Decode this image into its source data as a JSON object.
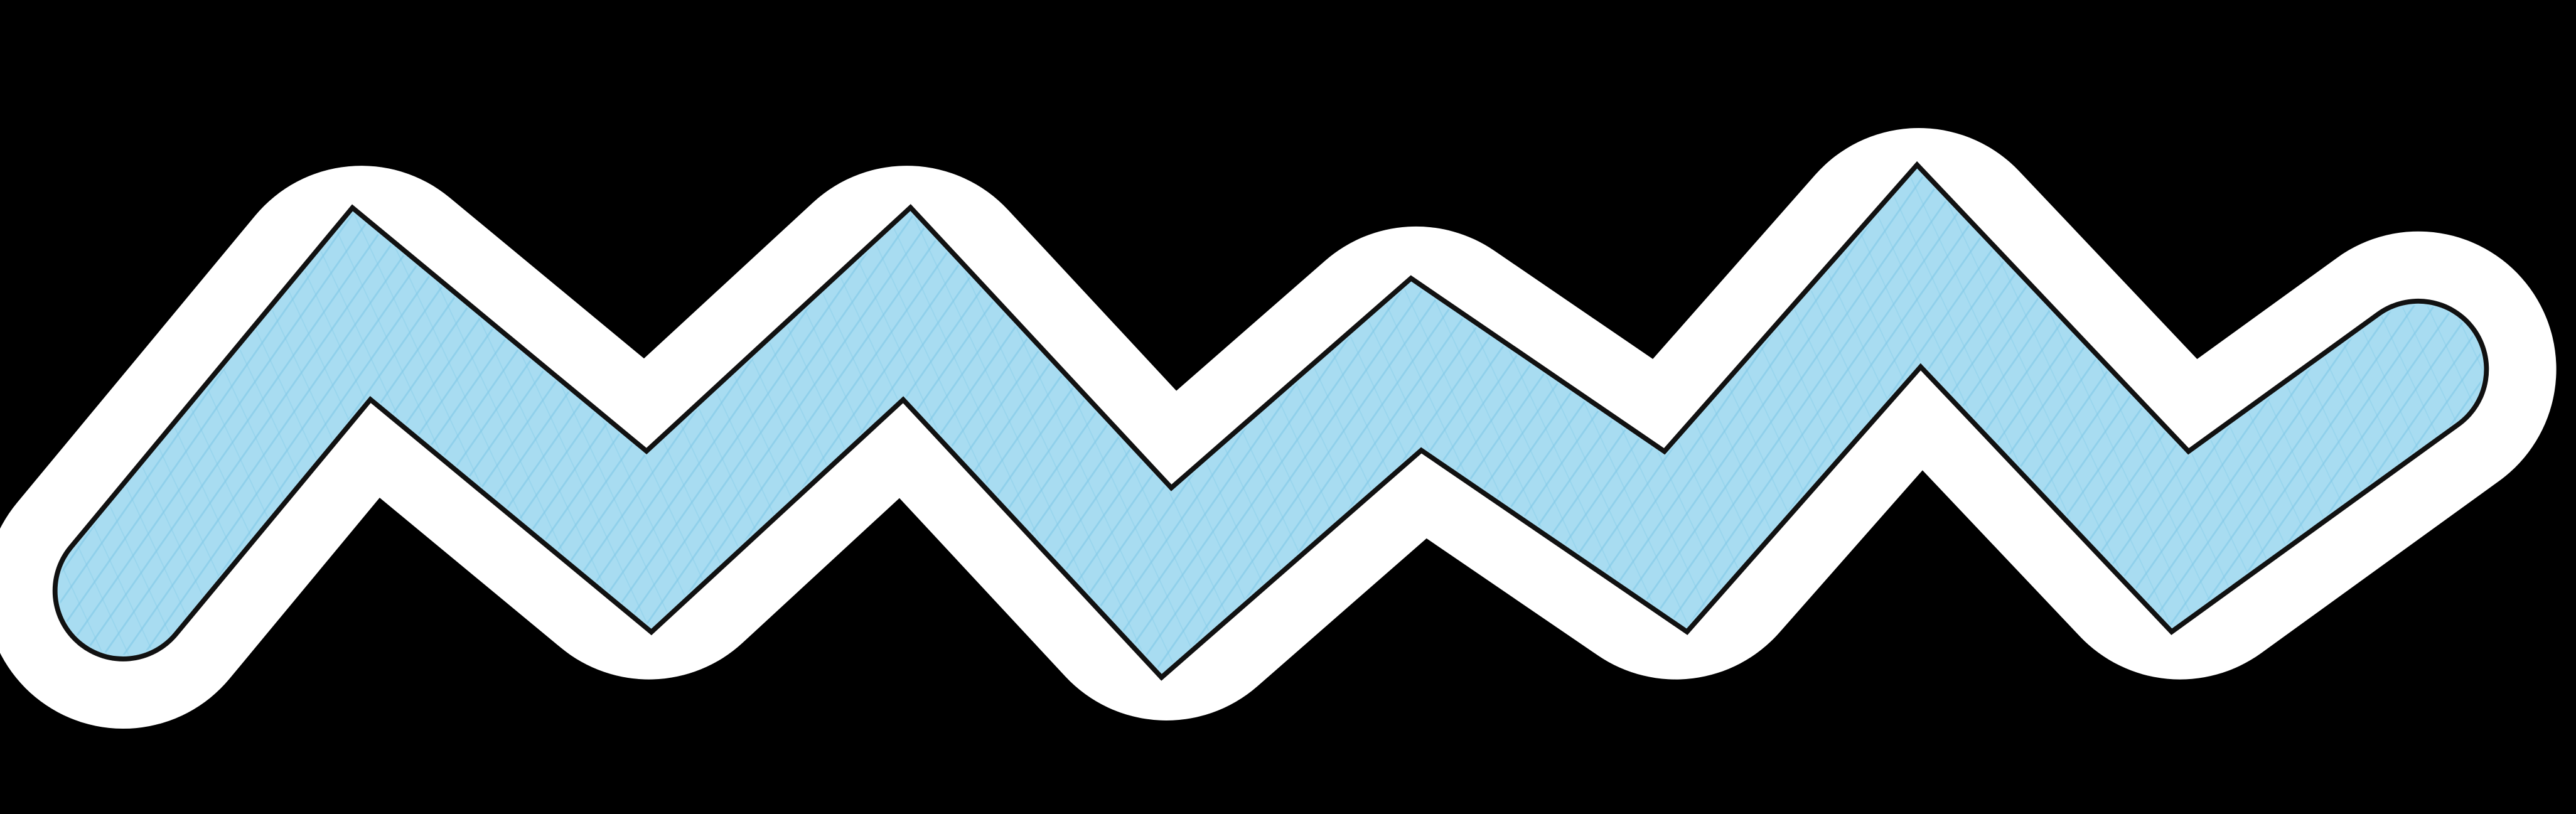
{
  "colors": {
    "background": "#000000",
    "sticker_border": "#ffffff",
    "zigzag_fill": "#a8dcf1",
    "zigzag_outline": "#111111",
    "scribble": "#7cc7e6"
  },
  "illustration": {
    "subject": "zigzag-sticker"
  }
}
